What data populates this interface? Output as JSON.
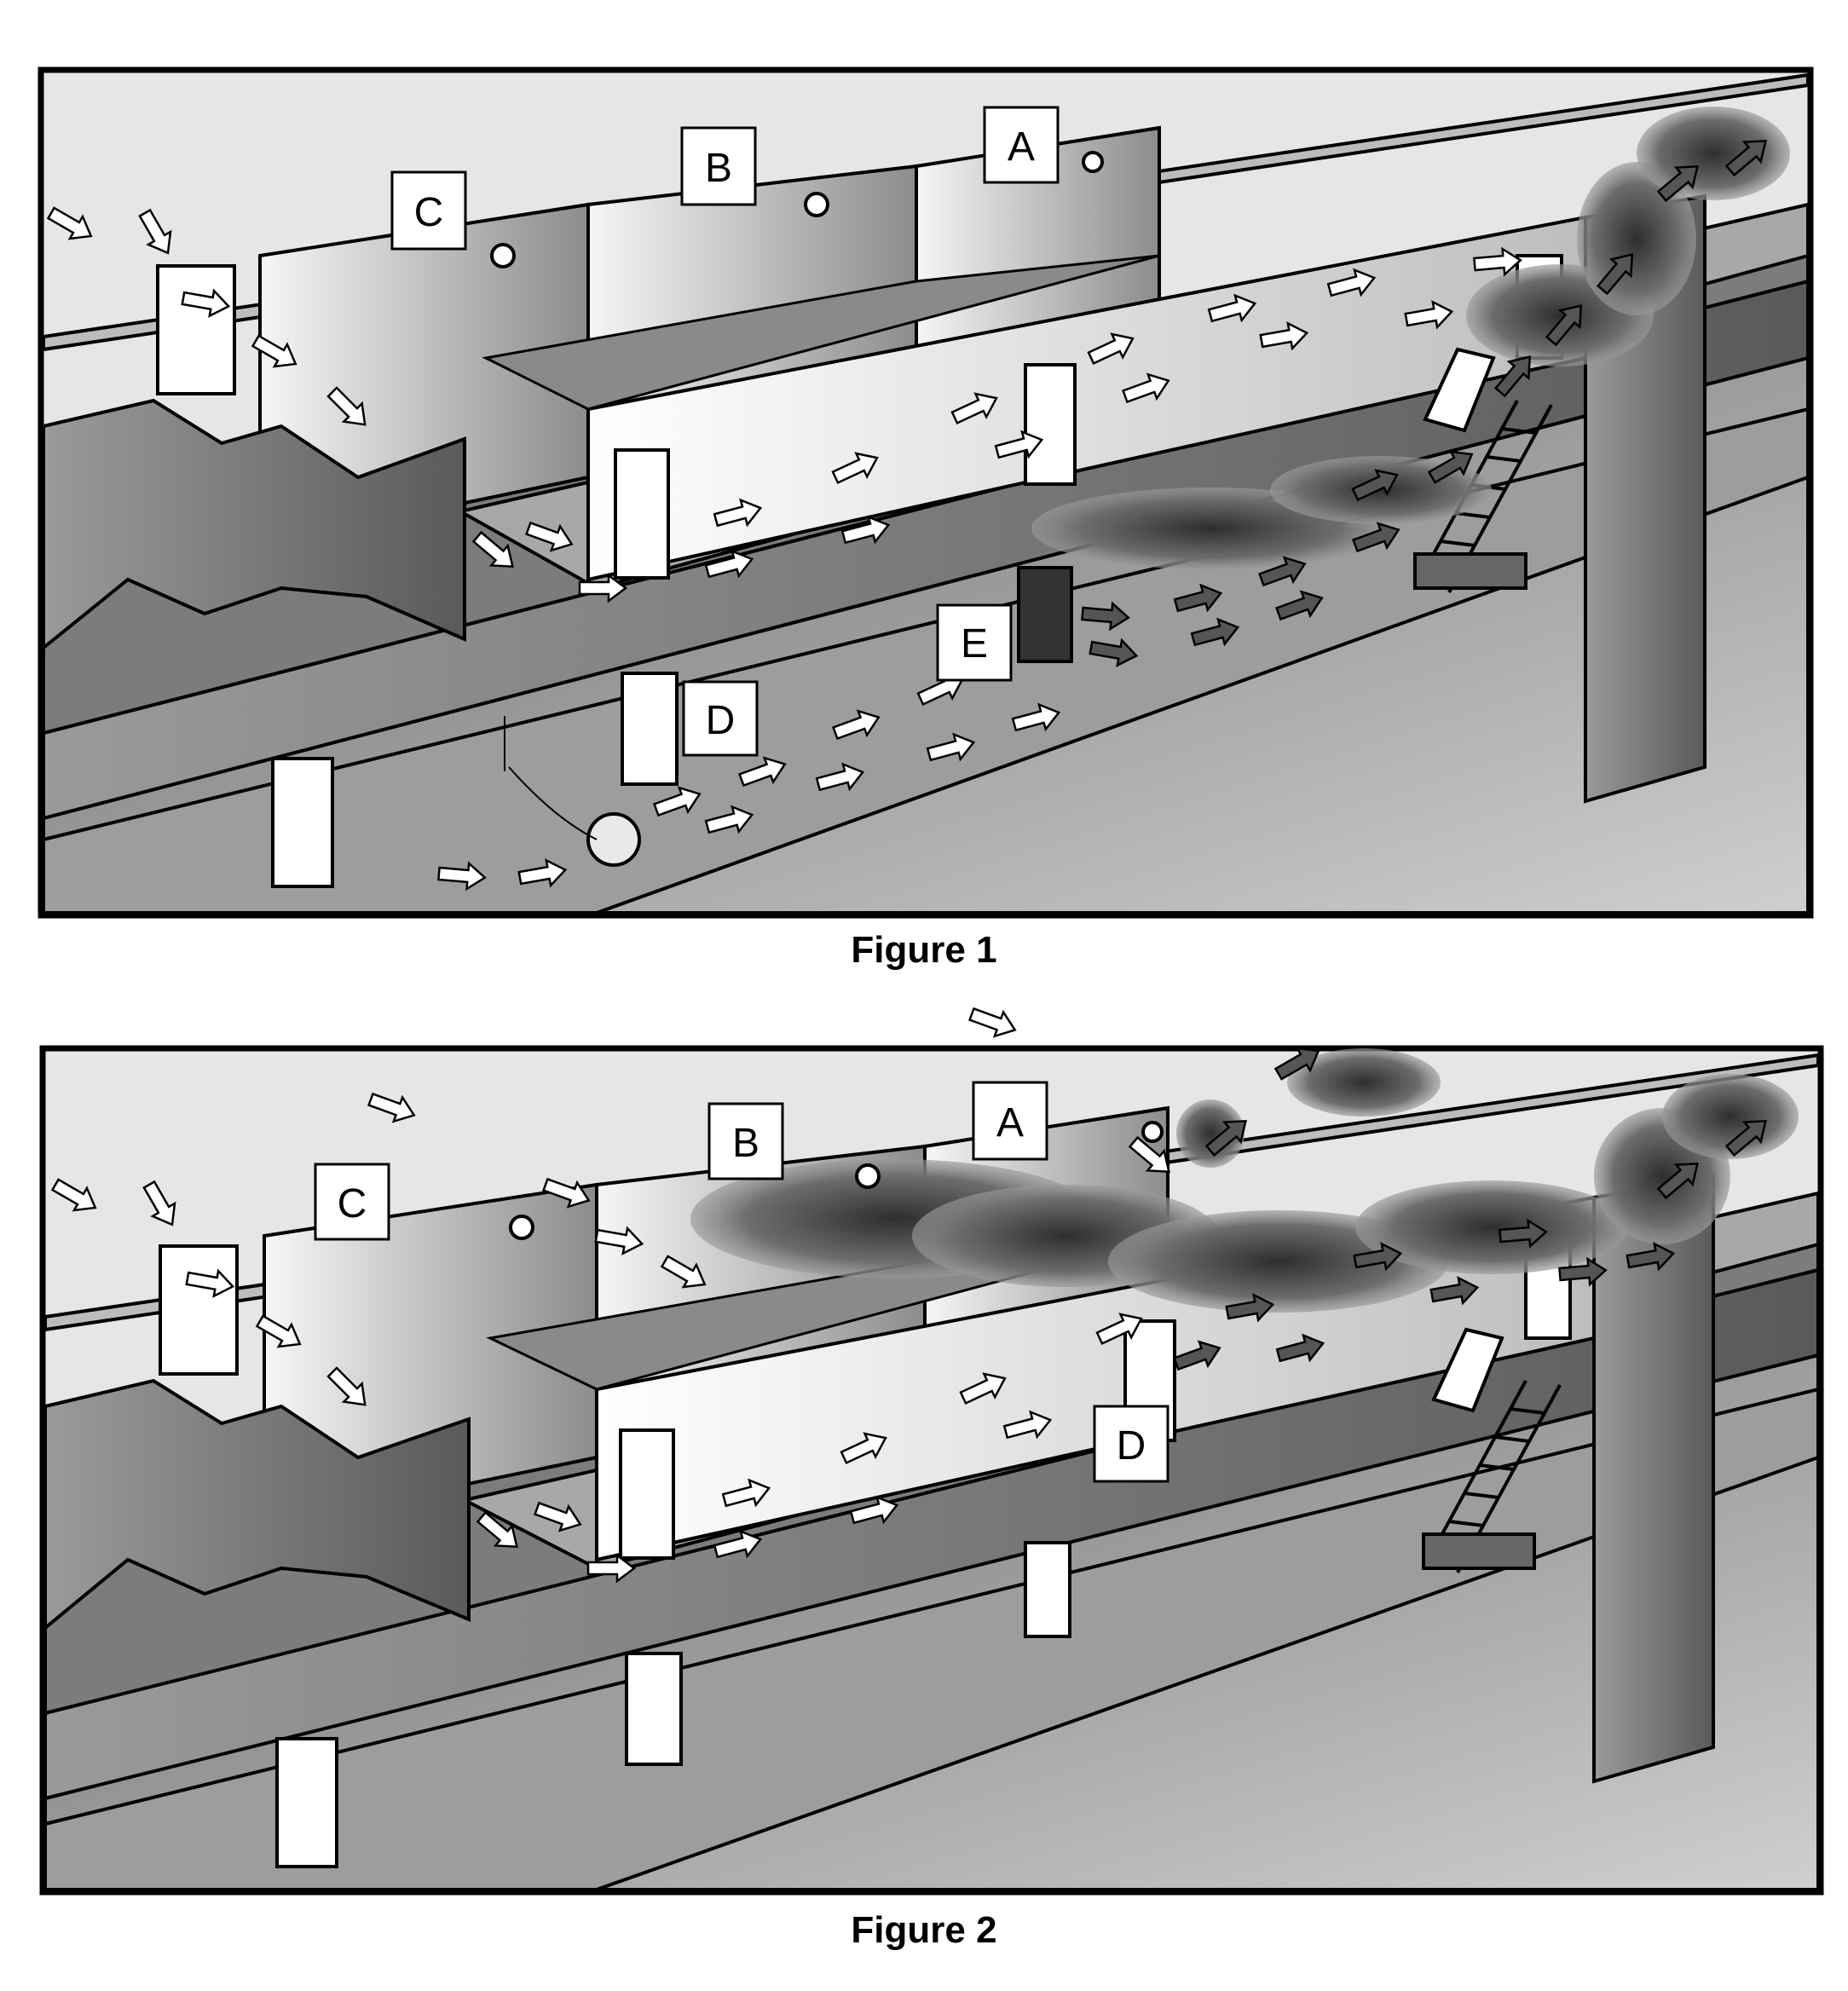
{
  "figures": [
    {
      "caption": "Figure 1",
      "labels": [
        "A",
        "B",
        "C",
        "D",
        "E"
      ]
    },
    {
      "caption": "Figure 2",
      "labels": [
        "A",
        "B",
        "C",
        "D"
      ]
    }
  ]
}
